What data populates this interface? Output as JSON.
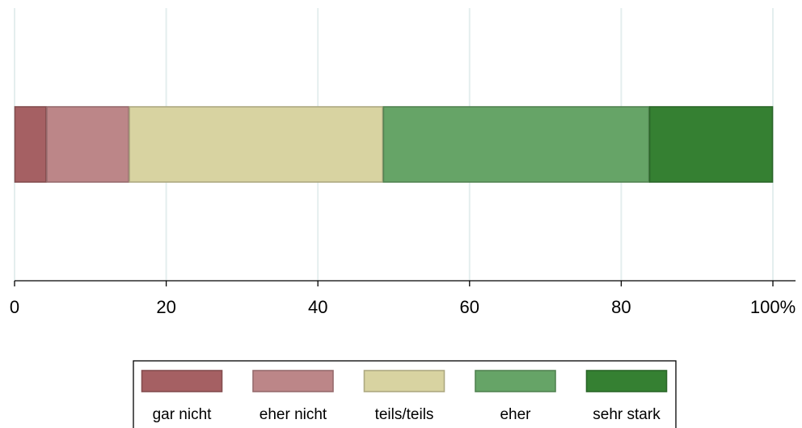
{
  "chart_data": {
    "type": "bar",
    "orientation": "horizontal",
    "stacked": true,
    "categories": [
      ""
    ],
    "series": [
      {
        "name": "gar nicht",
        "values": [
          4.2
        ],
        "color": "#a56063"
      },
      {
        "name": "eher nicht",
        "values": [
          10.9
        ],
        "color": "#bc8688"
      },
      {
        "name": "teils/teils",
        "values": [
          33.5
        ],
        "color": "#d8d3a1"
      },
      {
        "name": "eher",
        "values": [
          35.1
        ],
        "color": "#66a467"
      },
      {
        "name": "sehr stark",
        "values": [
          16.3
        ],
        "color": "#358032"
      }
    ],
    "xlim": [
      0,
      100
    ],
    "xticks": [
      0,
      20,
      40,
      60,
      80,
      100
    ],
    "xtick_labels": [
      "0",
      "20",
      "40",
      "60",
      "80",
      "100%"
    ],
    "grid": true,
    "legend_position": "bottom"
  }
}
